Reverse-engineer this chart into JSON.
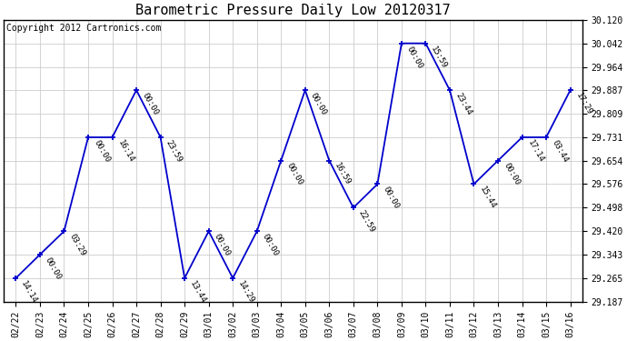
{
  "title": "Barometric Pressure Daily Low 20120317",
  "copyright": "Copyright 2012 Cartronics.com",
  "line_color": "#0000cc",
  "background_color": "#ffffff",
  "grid_color": "#cccccc",
  "x_labels": [
    "02/22",
    "02/23",
    "02/24",
    "02/25",
    "02/26",
    "02/27",
    "02/28",
    "02/29",
    "03/01",
    "03/02",
    "03/03",
    "03/04",
    "03/05",
    "03/06",
    "03/07",
    "03/08",
    "03/09",
    "03/10",
    "03/11",
    "03/12",
    "03/13",
    "03/14",
    "03/15",
    "03/16"
  ],
  "point_labels": [
    "14:14",
    "00:00",
    "03:29",
    "00:00",
    "16:14",
    "00:00",
    "23:59",
    "13:44",
    "00:00",
    "14:29",
    "00:00",
    "00:00",
    "00:00",
    "16:59",
    "22:59",
    "00:00",
    "00:00",
    "15:59",
    "23:44",
    "15:44",
    "00:00",
    "17:14",
    "03:44",
    "17:29"
  ],
  "y_values": [
    29.265,
    29.343,
    29.42,
    29.731,
    29.731,
    29.887,
    29.731,
    29.265,
    29.42,
    29.265,
    29.42,
    29.654,
    29.887,
    29.654,
    29.498,
    29.576,
    30.042,
    30.042,
    29.887,
    29.576,
    29.654,
    29.731,
    29.731,
    29.887
  ],
  "ytick_values": [
    29.187,
    29.265,
    29.343,
    29.42,
    29.498,
    29.576,
    29.654,
    29.731,
    29.809,
    29.887,
    29.964,
    30.042,
    30.12
  ],
  "ylim": [
    29.187,
    30.12
  ],
  "title_fontsize": 11,
  "tick_fontsize": 7,
  "annotation_fontsize": 6.5,
  "copyright_fontsize": 7
}
